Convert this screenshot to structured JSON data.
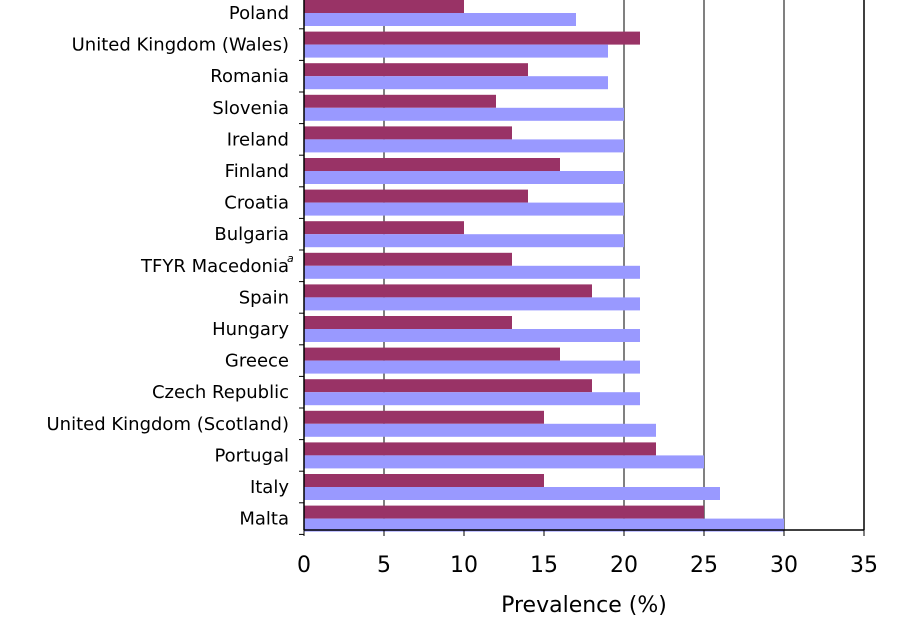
{
  "chart_data": {
    "type": "bar",
    "orientation": "horizontal",
    "title": "",
    "xlabel": "Prevalence (%)",
    "ylabel": "",
    "xlim": [
      0,
      35
    ],
    "xticks": [
      0,
      5,
      10,
      15,
      20,
      25,
      30,
      35
    ],
    "grid": "vertical lines at 5, 20, 25, 30",
    "legend": "none",
    "categories": [
      "Poland",
      "United Kingdom (Wales)",
      "Romania",
      "Slovenia",
      "Ireland",
      "Finland",
      "Croatia",
      "Bulgaria",
      "TFYR Macedonia",
      "Spain",
      "Hungary",
      "Greece",
      "Czech Republic",
      "United Kingdom (Scotland)",
      "Portugal",
      "Italy",
      "Malta"
    ],
    "category_superscripts": {
      "TFYR Macedonia": "a"
    },
    "series": [
      {
        "color": "#993366",
        "values": [
          10,
          21,
          14,
          12,
          13,
          16,
          14,
          10,
          13,
          18,
          13,
          16,
          18,
          15,
          22,
          15,
          25
        ]
      },
      {
        "color": "#9999ff",
        "values": [
          17,
          19,
          19,
          20,
          20,
          20,
          20,
          20,
          21,
          21,
          21,
          21,
          21,
          22,
          25,
          26,
          30
        ]
      }
    ]
  }
}
